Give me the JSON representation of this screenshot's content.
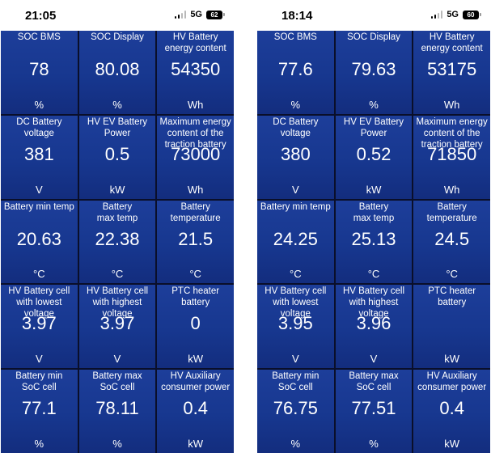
{
  "screens": [
    {
      "status": {
        "time": "21:05",
        "network": "5G",
        "battery": "62"
      },
      "tiles": [
        {
          "label": "SOC BMS",
          "value": "78",
          "unit": "%"
        },
        {
          "label": "SOC Display",
          "value": "80.08",
          "unit": "%"
        },
        {
          "label": "HV Battery\nenergy content",
          "value": "54350",
          "unit": "Wh"
        },
        {
          "label": "DC Battery\nvoltage",
          "value": "381",
          "unit": "V"
        },
        {
          "label": "HV EV Battery\nPower",
          "value": "0.5",
          "unit": "kW"
        },
        {
          "label": "Maximum energy\ncontent of the\ntraction battery",
          "value": "73000",
          "unit": "Wh"
        },
        {
          "label": "Battery min temp",
          "value": "20.63",
          "unit": "°C"
        },
        {
          "label": "Battery\nmax temp",
          "value": "22.38",
          "unit": "°C"
        },
        {
          "label": "Battery\ntemperature",
          "value": "21.5",
          "unit": "°C"
        },
        {
          "label": "HV Battery cell\nwith lowest\nvoltage",
          "value": "3.97",
          "unit": "V"
        },
        {
          "label": "HV Battery cell\nwith highest\nvoltage",
          "value": "3.97",
          "unit": "V"
        },
        {
          "label": "PTC heater\nbattery",
          "value": "0",
          "unit": "kW"
        },
        {
          "label": "Battery min\nSoC cell",
          "value": "77.1",
          "unit": "%"
        },
        {
          "label": "Battery max\nSoC cell",
          "value": "78.11",
          "unit": "%"
        },
        {
          "label": "HV Auxiliary\nconsumer power",
          "value": "0.4",
          "unit": "kW"
        }
      ]
    },
    {
      "status": {
        "time": "18:14",
        "network": "5G",
        "battery": "60"
      },
      "tiles": [
        {
          "label": "SOC BMS",
          "value": "77.6",
          "unit": "%"
        },
        {
          "label": "SOC Display",
          "value": "79.63",
          "unit": "%"
        },
        {
          "label": "HV Battery\nenergy content",
          "value": "53175",
          "unit": "Wh"
        },
        {
          "label": "DC Battery\nvoltage",
          "value": "380",
          "unit": "V"
        },
        {
          "label": "HV EV Battery\nPower",
          "value": "0.52",
          "unit": "kW"
        },
        {
          "label": "Maximum energy\ncontent of the\ntraction battery",
          "value": "71850",
          "unit": "Wh"
        },
        {
          "label": "Battery min temp",
          "value": "24.25",
          "unit": "°C"
        },
        {
          "label": "Battery\nmax temp",
          "value": "25.13",
          "unit": "°C"
        },
        {
          "label": "Battery\ntemperature",
          "value": "24.5",
          "unit": "°C"
        },
        {
          "label": "HV Battery cell\nwith lowest\nvoltage",
          "value": "3.95",
          "unit": "V"
        },
        {
          "label": "HV Battery cell\nwith highest\nvoltage",
          "value": "3.96",
          "unit": "V"
        },
        {
          "label": "PTC heater\nbattery",
          "value": "",
          "unit": "kW"
        },
        {
          "label": "Battery min\nSoC cell",
          "value": "76.75",
          "unit": "%"
        },
        {
          "label": "Battery max\nSoC cell",
          "value": "77.51",
          "unit": "%"
        },
        {
          "label": "HV Auxiliary\nconsumer power",
          "value": "0.4",
          "unit": "kW"
        }
      ]
    }
  ]
}
